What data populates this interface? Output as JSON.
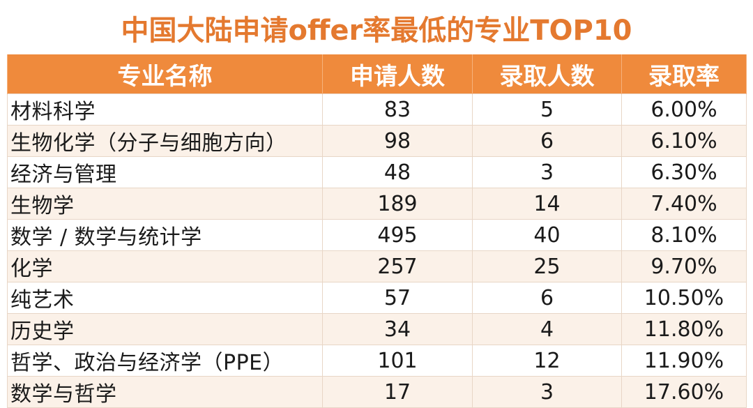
{
  "chart_data": {
    "type": "table",
    "title": "中国大陆申请offer率最低的专业TOP10",
    "columns": [
      "专业名称",
      "申请人数",
      "录取人数",
      "录取率"
    ],
    "rows": [
      {
        "major": "材料科学",
        "applicants": "83",
        "admitted": "5",
        "rate": "6.00%"
      },
      {
        "major": "生物化学（分子与细胞方向）",
        "applicants": "98",
        "admitted": "6",
        "rate": "6.10%"
      },
      {
        "major": "经济与管理",
        "applicants": "48",
        "admitted": "3",
        "rate": "6.30%"
      },
      {
        "major": "生物学",
        "applicants": "189",
        "admitted": "14",
        "rate": "7.40%"
      },
      {
        "major": "数学 / 数学与统计学",
        "applicants": "495",
        "admitted": "40",
        "rate": "8.10%"
      },
      {
        "major": "化学",
        "applicants": "257",
        "admitted": "25",
        "rate": "9.70%"
      },
      {
        "major": "纯艺术",
        "applicants": "57",
        "admitted": "6",
        "rate": "10.50%"
      },
      {
        "major": "历史学",
        "applicants": "34",
        "admitted": "4",
        "rate": "11.80%"
      },
      {
        "major": "哲学、政治与经济学（PPE）",
        "applicants": "101",
        "admitted": "12",
        "rate": "11.90%"
      },
      {
        "major": "数学与哲学",
        "applicants": "17",
        "admitted": "3",
        "rate": "17.60%"
      }
    ],
    "colors": {
      "title": "#e4792f",
      "header_bg": "#ef8a3c",
      "header_text": "#ffffff",
      "row_alt_bg": "#fbf1e8"
    }
  }
}
